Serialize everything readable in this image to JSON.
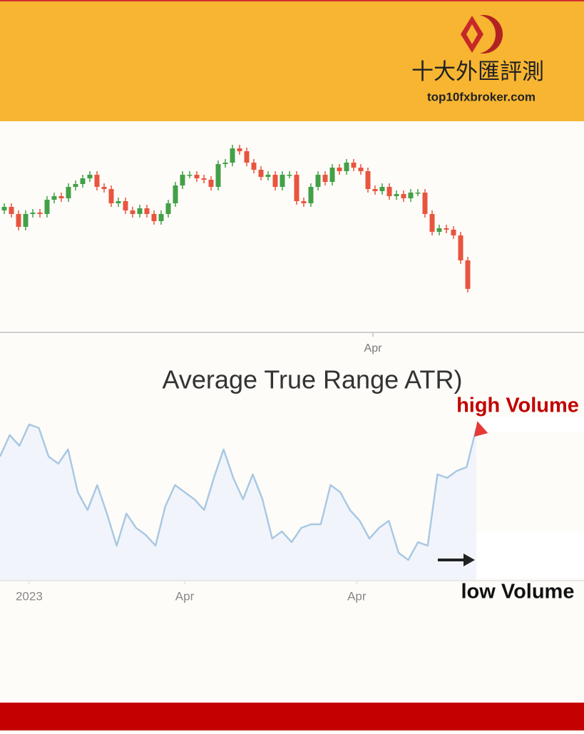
{
  "header": {
    "brand": "十大外匯評測",
    "site": "top10fxbroker.com"
  },
  "chart_data": [
    {
      "type": "candlestick",
      "up_color": "#43a047",
      "down_color": "#e8553f",
      "xlim": [
        0,
        65
      ],
      "ylim": [
        0,
        300
      ],
      "xticks": [
        {
          "value": 51.7,
          "label": "Apr"
        }
      ],
      "open": [
        170,
        175,
        165,
        147,
        165,
        167,
        165,
        185,
        190,
        187,
        203,
        207,
        215,
        220,
        203,
        200,
        180,
        183,
        170,
        165,
        173,
        165,
        155,
        165,
        180,
        205,
        220,
        220,
        215,
        213,
        203,
        235,
        237,
        257,
        253,
        237,
        227,
        217,
        220,
        203,
        220,
        220,
        183,
        180,
        203,
        220,
        210,
        230,
        225,
        237,
        230,
        225,
        200,
        197,
        203,
        190,
        193,
        187,
        195,
        195,
        165,
        140,
        145,
        143,
        135,
        100
      ],
      "high": [
        180,
        180,
        170,
        170,
        172,
        172,
        190,
        195,
        195,
        208,
        212,
        220,
        225,
        225,
        208,
        205,
        188,
        188,
        175,
        178,
        178,
        170,
        170,
        185,
        210,
        225,
        225,
        225,
        220,
        218,
        240,
        242,
        262,
        262,
        258,
        242,
        232,
        225,
        225,
        225,
        225,
        225,
        188,
        208,
        225,
        225,
        235,
        235,
        242,
        242,
        235,
        230,
        205,
        208,
        208,
        198,
        198,
        200,
        200,
        200,
        170,
        150,
        150,
        148,
        140,
        105
      ],
      "low": [
        165,
        160,
        142,
        142,
        160,
        160,
        160,
        180,
        182,
        182,
        198,
        202,
        210,
        198,
        195,
        175,
        175,
        165,
        160,
        160,
        160,
        150,
        150,
        160,
        175,
        200,
        215,
        210,
        208,
        198,
        198,
        230,
        232,
        248,
        232,
        222,
        212,
        212,
        198,
        198,
        215,
        178,
        175,
        175,
        198,
        205,
        205,
        220,
        220,
        225,
        220,
        195,
        192,
        192,
        185,
        185,
        182,
        182,
        190,
        160,
        135,
        135,
        138,
        130,
        95,
        55
      ],
      "close": [
        175,
        165,
        147,
        165,
        167,
        165,
        185,
        190,
        187,
        203,
        207,
        215,
        220,
        203,
        200,
        180,
        183,
        170,
        165,
        173,
        165,
        155,
        165,
        180,
        205,
        220,
        220,
        215,
        213,
        203,
        235,
        237,
        257,
        253,
        237,
        227,
        217,
        220,
        203,
        220,
        220,
        183,
        180,
        203,
        220,
        210,
        230,
        225,
        237,
        230,
        225,
        200,
        197,
        203,
        190,
        193,
        187,
        195,
        195,
        165,
        140,
        145,
        143,
        135,
        100,
        60
      ]
    },
    {
      "type": "line",
      "title": "Average True Range ATR)",
      "color": "#a9c8e3",
      "fill": "#f1f5fb",
      "xlim": [
        0,
        49
      ],
      "ylim": [
        0,
        260
      ],
      "xticks": [
        {
          "value": 3,
          "label": "2023"
        },
        {
          "value": 19,
          "label": "Apr"
        },
        {
          "value": 36.7,
          "label": "Apr"
        }
      ],
      "values": [
        173,
        203,
        188,
        218,
        213,
        173,
        163,
        183,
        123,
        98,
        133,
        93,
        48,
        93,
        73,
        63,
        48,
        103,
        133,
        123,
        113,
        98,
        143,
        183,
        143,
        113,
        148,
        113,
        58,
        68,
        53,
        73,
        78,
        78,
        133,
        123,
        98,
        83,
        58,
        73,
        83,
        38,
        28,
        53,
        48,
        148,
        143,
        153,
        158,
        213
      ],
      "annotations": [
        "high Volume",
        "low Volume"
      ]
    }
  ]
}
